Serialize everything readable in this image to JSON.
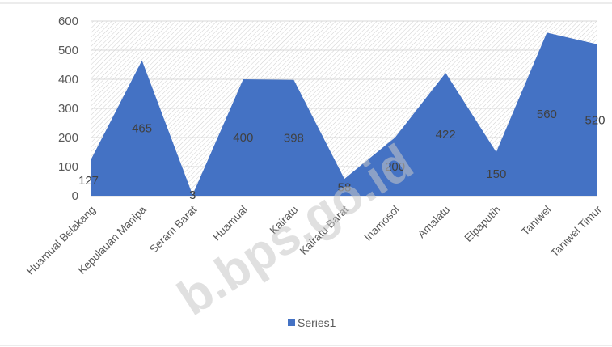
{
  "chart_data": {
    "type": "area",
    "categories": [
      "Huamual Belakang",
      "Kepulauan Manipa",
      "Seram Barat",
      "Huamual",
      "Kairatu",
      "Kairatu Barat",
      "Inamosol",
      "Amalatu",
      "Elpaputih",
      "Taniwel",
      "Taniwel Timur"
    ],
    "series": [
      {
        "name": "Series1",
        "values": [
          127,
          465,
          3,
          400,
          398,
          58,
          200,
          422,
          150,
          560,
          520
        ],
        "color": "#4472c4"
      }
    ],
    "ylim": [
      0,
      600
    ],
    "yticks": [
      0,
      100,
      200,
      300,
      400,
      500,
      600
    ],
    "grid": true,
    "legend": "bottom",
    "watermark": "b.bps.go.id"
  }
}
